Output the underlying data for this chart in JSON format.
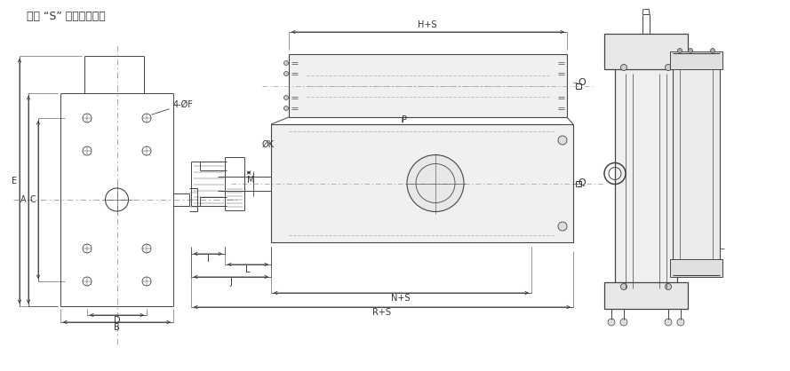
{
  "bg_color": "#f5f5f5",
  "border_color": "#aaaaaa",
  "line_color": "#444444",
  "dash_color": "#888888",
  "title_text": "注： “S” 為缸的總行程",
  "label_4F": "4-ØF",
  "label_E": "E",
  "label_A": "A",
  "label_C": "C",
  "label_D": "D",
  "label_B": "B",
  "label_M": "M",
  "label_I": "I",
  "label_J": "J",
  "label_L": "L",
  "label_K": "ØK",
  "label_P": "P",
  "label_Q": "Q",
  "label_O": "O",
  "label_NS": "N+S",
  "label_RS": "R+S",
  "label_HS": "H+S",
  "fontsize": 7,
  "title_fontsize": 9
}
